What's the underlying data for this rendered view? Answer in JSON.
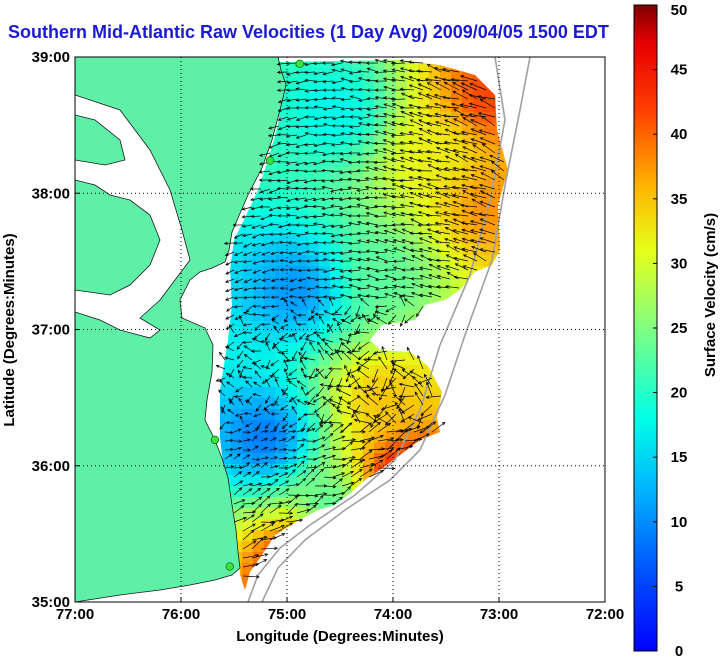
{
  "title": "Southern Mid-Atlantic Raw Velocities (1 Day Avg) 2009/04/05 1500 EDT",
  "map": {
    "xlabel": "Longitude (Degrees:Minutes)",
    "ylabel": "Latitude (Degrees:Minutes)",
    "lon_range": [
      -77,
      -72
    ],
    "lat_range": [
      35,
      39
    ],
    "x_ticks": [
      {
        "value": -77,
        "label": "77:00"
      },
      {
        "value": -76,
        "label": "76:00"
      },
      {
        "value": -75,
        "label": "75:00"
      },
      {
        "value": -74,
        "label": "74:00"
      },
      {
        "value": -73,
        "label": "73:00"
      },
      {
        "value": -72,
        "label": "72:00"
      }
    ],
    "y_ticks": [
      {
        "value": 39,
        "label": "39:00"
      },
      {
        "value": 38,
        "label": "38:00"
      },
      {
        "value": 37,
        "label": "37:00"
      },
      {
        "value": 36,
        "label": "36:00"
      },
      {
        "value": 35,
        "label": "35:00"
      }
    ],
    "grid": "dotted",
    "land_color": "#5ff0a8",
    "shelf_break_color": "#a0a0a0",
    "station_color": "#40e040"
  },
  "colorbar": {
    "label": "Surface Velocity (cm/s)",
    "range": [
      0,
      50
    ],
    "ticks": [
      "0",
      "5",
      "10",
      "15",
      "20",
      "25",
      "30",
      "35",
      "40",
      "45",
      "50"
    ],
    "colormap": "jet"
  },
  "chart_data": {
    "type": "heatmap",
    "description_units": "speed cm/s, lon/lat degrees",
    "stations": [
      {
        "lon": -74.88,
        "lat": 38.95
      },
      {
        "lon": -75.16,
        "lat": 38.24
      },
      {
        "lon": -75.68,
        "lat": 36.19
      },
      {
        "lon": -75.54,
        "lat": 35.26
      }
    ],
    "speed_zones": [
      {
        "lon": -73.6,
        "lat": 38.3,
        "speed": 32
      },
      {
        "lon": -73.1,
        "lat": 38.7,
        "speed": 42
      },
      {
        "lon": -73.1,
        "lat": 37.9,
        "speed": 38
      },
      {
        "lon": -74.5,
        "lat": 38.6,
        "speed": 17
      },
      {
        "lon": -74.9,
        "lat": 37.3,
        "speed": 10
      },
      {
        "lon": -74.1,
        "lat": 37.4,
        "speed": 23
      },
      {
        "lon": -75.2,
        "lat": 36.2,
        "speed": 8
      },
      {
        "lon": -74.1,
        "lat": 36.5,
        "speed": 35
      },
      {
        "lon": -73.9,
        "lat": 35.9,
        "speed": 46
      },
      {
        "lon": -74.6,
        "lat": 35.7,
        "speed": 22
      },
      {
        "lon": -74.8,
        "lat": 35.3,
        "speed": 48
      }
    ]
  }
}
